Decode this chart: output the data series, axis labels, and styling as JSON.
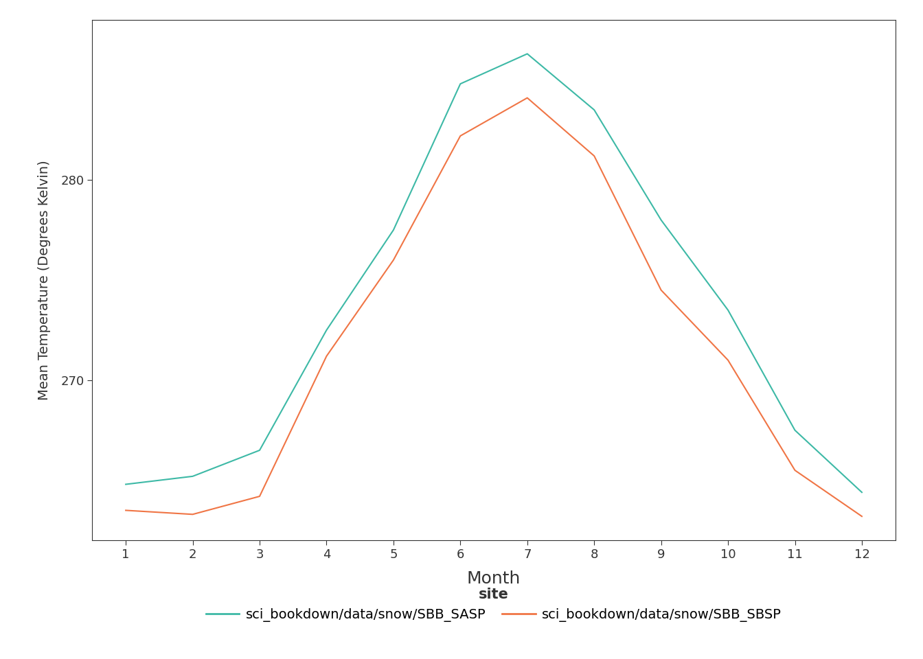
{
  "months": [
    1,
    2,
    3,
    4,
    5,
    6,
    7,
    8,
    9,
    10,
    11,
    12
  ],
  "sasp_temps": [
    264.8,
    265.2,
    266.5,
    272.5,
    277.5,
    284.8,
    286.3,
    283.5,
    278.0,
    273.5,
    267.5,
    264.4
  ],
  "sbsp_temps": [
    263.5,
    263.3,
    264.2,
    271.2,
    276.0,
    282.2,
    284.1,
    281.2,
    274.5,
    271.0,
    265.5,
    263.2
  ],
  "sasp_color": "#3DB9A6",
  "sbsp_color": "#F07545",
  "ylabel": "Mean Temperature (Degrees Kelvin)",
  "xlabel": "Month",
  "legend_title": "site",
  "sasp_label": "sci_bookdown/data/snow/SBB_SASP",
  "sbsp_label": "sci_bookdown/data/snow/SBB_SBSP",
  "yticks": [
    270,
    280
  ],
  "xticks": [
    1,
    2,
    3,
    4,
    5,
    6,
    7,
    8,
    9,
    10,
    11,
    12
  ],
  "ylim": [
    262.0,
    288.0
  ],
  "xlim": [
    0.5,
    12.5
  ],
  "line_width": 1.5,
  "bg_color": "#ffffff",
  "panel_bg": "#ffffff",
  "spine_color": "#333333",
  "tick_color": "#333333",
  "text_color": "#333333"
}
